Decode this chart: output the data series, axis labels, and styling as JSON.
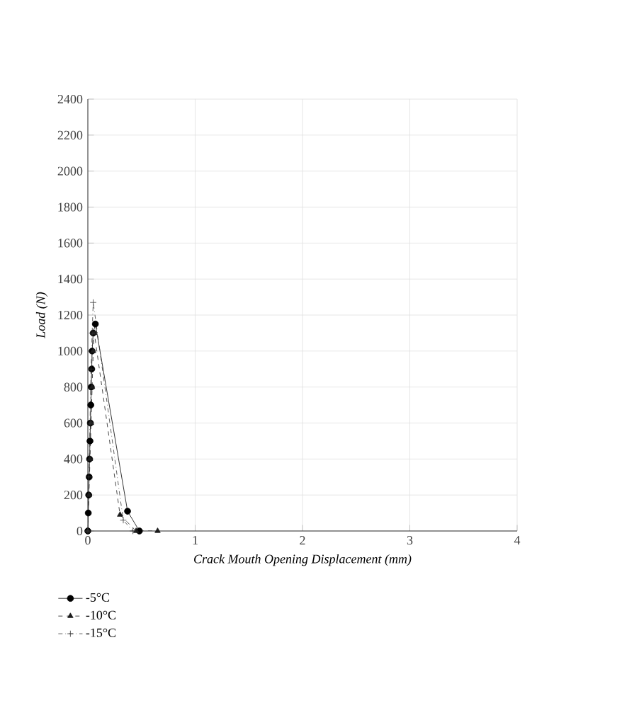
{
  "chart_data": {
    "type": "line",
    "xlabel": "Crack Mouth Opening Displacement (mm)",
    "ylabel": "Load (N)",
    "xlim": [
      0,
      4
    ],
    "xticks": [
      0,
      1,
      2,
      3,
      4
    ],
    "ylim": [
      0,
      2400
    ],
    "yticks": [
      0,
      200,
      400,
      600,
      800,
      1000,
      1200,
      1400,
      1600,
      1800,
      2000,
      2200,
      2400
    ],
    "grid": true,
    "legend": "bottom left",
    "series": [
      {
        "name": "-5°C",
        "color": "#000000",
        "marker": "circle",
        "line_style": "solid",
        "x": [
          0,
          0.004,
          0.008,
          0.012,
          0.016,
          0.02,
          0.024,
          0.028,
          0.032,
          0.036,
          0.04,
          0.05,
          0.07,
          0.37,
          0.48
        ],
        "values": [
          0,
          100,
          200,
          300,
          400,
          500,
          600,
          700,
          800,
          900,
          1000,
          1100,
          1150,
          110,
          0
        ]
      },
      {
        "name": "-10°C",
        "color": "#1c1c1c",
        "marker": "triangle",
        "line_style": "dashed",
        "x": [
          0,
          0.01,
          0.02,
          0.03,
          0.04,
          0.05,
          0.06,
          0.3,
          0.45,
          0.65
        ],
        "values": [
          0,
          200,
          400,
          600,
          800,
          1000,
          1100,
          90,
          0,
          0
        ]
      },
      {
        "name": "-15°C",
        "color": "#383838",
        "marker": "cross",
        "line_style": "dashdotted",
        "x": [
          0,
          0.01,
          0.02,
          0.03,
          0.04,
          0.05,
          0.33,
          0.42
        ],
        "values": [
          0,
          300,
          600,
          900,
          1100,
          1270,
          60,
          0
        ]
      }
    ]
  }
}
